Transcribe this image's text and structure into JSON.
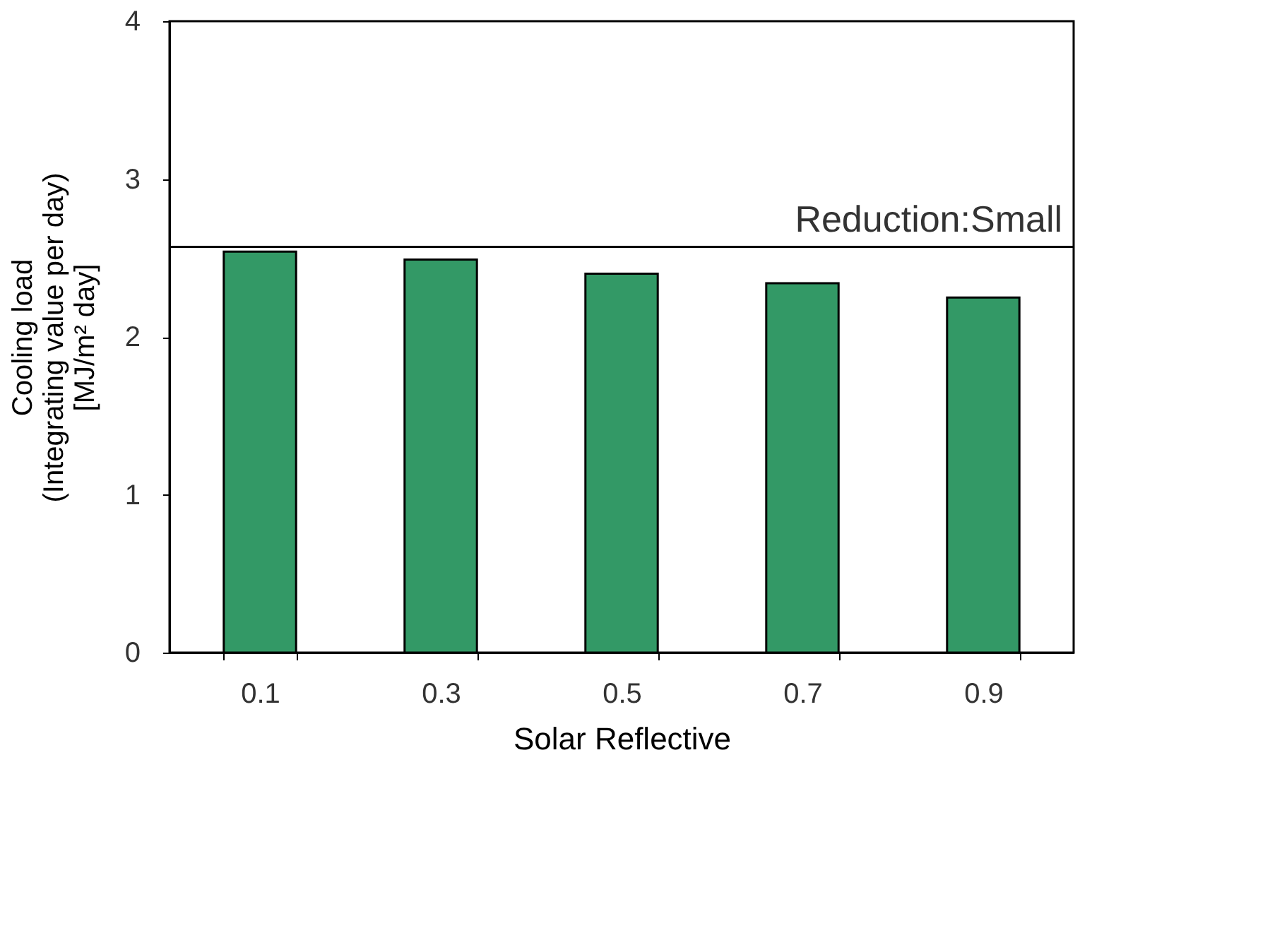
{
  "chart_data": {
    "type": "bar",
    "xlabel": "Solar Reflective",
    "ylabel": [
      "Cooling load",
      "(Integrating value per day)",
      "[MJ/m² day]"
    ],
    "categories": [
      "0.1",
      "0.3",
      "0.5",
      "0.7",
      "0.9"
    ],
    "series": [
      {
        "color": "#339966",
        "values": [
          2.54,
          2.49,
          2.4,
          2.34,
          2.25
        ]
      }
    ],
    "ylim": [
      0,
      4
    ],
    "yticks": [
      0,
      1,
      2,
      3,
      4
    ],
    "grid": false,
    "ref_lines": [
      {
        "axis": "y",
        "value": 2.57,
        "label": "Reduction:Small",
        "color": "#000000",
        "line_style": "solid"
      }
    ]
  }
}
